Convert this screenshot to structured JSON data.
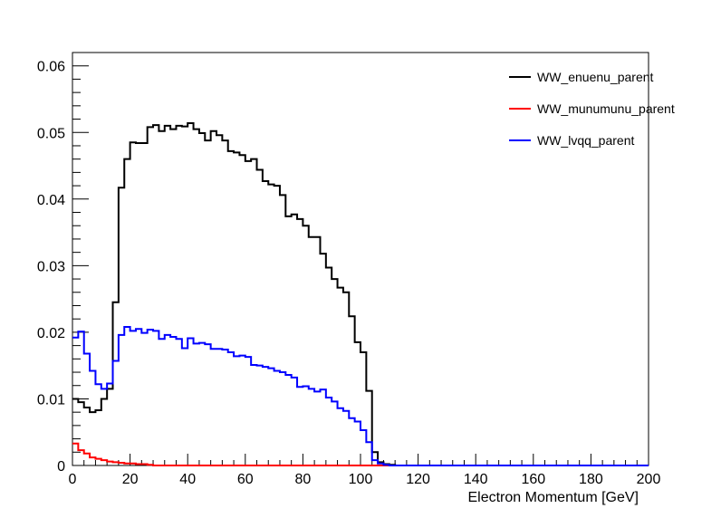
{
  "chart_data": {
    "type": "line",
    "style": "histogram-step",
    "xlabel": "Electron Momentum [GeV]",
    "ylabel": "",
    "xlim": [
      0,
      200
    ],
    "ylim": [
      0,
      0.062
    ],
    "grid": false,
    "legend_position": "top-right",
    "x_ticks": [
      0,
      20,
      40,
      60,
      80,
      100,
      120,
      140,
      160,
      180,
      200
    ],
    "x_tick_labels": [
      "0",
      "20",
      "40",
      "60",
      "80",
      "100",
      "120",
      "140",
      "160",
      "180",
      "200"
    ],
    "y_ticks": [
      0,
      0.01,
      0.02,
      0.03,
      0.04,
      0.05,
      0.06
    ],
    "y_tick_labels": [
      "0",
      "0.01",
      "0.02",
      "0.03",
      "0.04",
      "0.05",
      "0.06"
    ],
    "bin_width": 2,
    "series": [
      {
        "name": "WW_enuenu_parent",
        "color": "#000000",
        "x": [
          0,
          2,
          4,
          6,
          8,
          10,
          12,
          14,
          16,
          18,
          20,
          22,
          24,
          26,
          28,
          30,
          32,
          34,
          36,
          38,
          40,
          42,
          44,
          46,
          48,
          50,
          52,
          54,
          56,
          58,
          60,
          62,
          64,
          66,
          68,
          70,
          72,
          74,
          76,
          78,
          80,
          82,
          84,
          86,
          88,
          90,
          92,
          94,
          96,
          98,
          100,
          102,
          104,
          106,
          108,
          110
        ],
        "values": [
          0.01,
          0.0095,
          0.0087,
          0.008,
          0.0083,
          0.01,
          0.0115,
          0.0245,
          0.0417,
          0.046,
          0.0485,
          0.0484,
          0.0484,
          0.0508,
          0.0511,
          0.0502,
          0.051,
          0.0505,
          0.051,
          0.0509,
          0.0514,
          0.0505,
          0.0499,
          0.0488,
          0.0502,
          0.0496,
          0.0488,
          0.0472,
          0.047,
          0.0466,
          0.0457,
          0.046,
          0.0444,
          0.0427,
          0.0422,
          0.042,
          0.0406,
          0.0374,
          0.0377,
          0.037,
          0.036,
          0.0343,
          0.0343,
          0.0318,
          0.0297,
          0.028,
          0.0267,
          0.026,
          0.0224,
          0.0185,
          0.017,
          0.0112,
          0.002,
          0.0005,
          0.0002,
          0.0001
        ]
      },
      {
        "name": "WW_munumunu_parent",
        "color": "#ff0000",
        "x": [
          0,
          2,
          4,
          6,
          8,
          10,
          12,
          14,
          16,
          18,
          20,
          22,
          24,
          26
        ],
        "values": [
          0.0033,
          0.0023,
          0.0018,
          0.0012,
          0.001,
          0.0008,
          0.0006,
          0.0005,
          0.0004,
          0.0003,
          0.0003,
          0.0002,
          0.0002,
          0.0001
        ]
      },
      {
        "name": "WW_lvqq_parent",
        "color": "#0000ff",
        "x": [
          0,
          2,
          4,
          6,
          8,
          10,
          12,
          14,
          16,
          18,
          20,
          22,
          24,
          26,
          28,
          30,
          32,
          34,
          36,
          38,
          40,
          42,
          44,
          46,
          48,
          50,
          52,
          54,
          56,
          58,
          60,
          62,
          64,
          66,
          68,
          70,
          72,
          74,
          76,
          78,
          80,
          82,
          84,
          86,
          88,
          90,
          92,
          94,
          96,
          98,
          100,
          102,
          104,
          106,
          108,
          110
        ],
        "values": [
          0.0192,
          0.0201,
          0.0168,
          0.0142,
          0.0122,
          0.0115,
          0.0123,
          0.0157,
          0.0196,
          0.0208,
          0.0202,
          0.0205,
          0.0199,
          0.0204,
          0.0202,
          0.019,
          0.0196,
          0.0193,
          0.019,
          0.0176,
          0.0191,
          0.0183,
          0.0184,
          0.0182,
          0.0175,
          0.0175,
          0.0174,
          0.017,
          0.0164,
          0.0165,
          0.0163,
          0.0151,
          0.015,
          0.0148,
          0.0146,
          0.0142,
          0.014,
          0.0136,
          0.0132,
          0.0118,
          0.0119,
          0.0115,
          0.0111,
          0.0114,
          0.0102,
          0.0096,
          0.0086,
          0.0082,
          0.0071,
          0.0066,
          0.0053,
          0.0035,
          0.0008,
          0.0003,
          0.0001,
          0.0
        ]
      }
    ]
  }
}
